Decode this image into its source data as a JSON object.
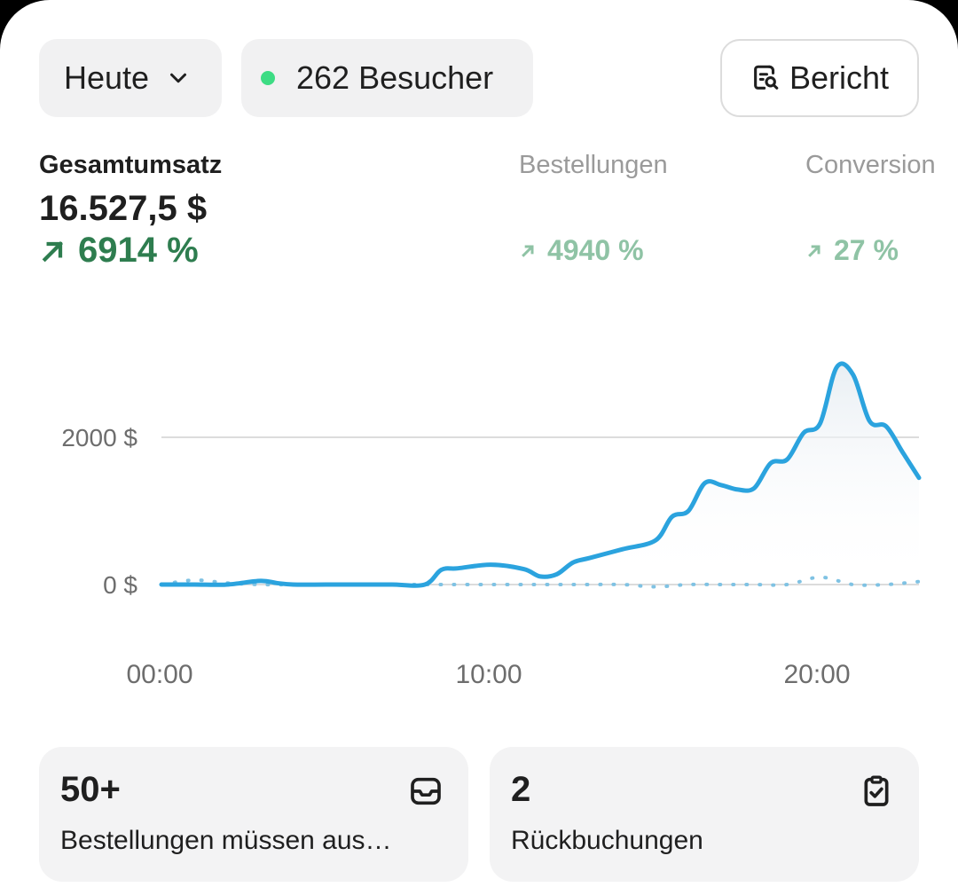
{
  "header": {
    "period_label": "Heute",
    "visitors_label": "262 Besucher",
    "report_label": "Bericht"
  },
  "metrics": {
    "revenue": {
      "label": "Gesamtumsatz",
      "value": "16.527,5 $",
      "change": "6914 %"
    },
    "orders": {
      "label": "Bestellungen",
      "change": "4940 %"
    },
    "conversion": {
      "label": "Conversion",
      "change": "27 %"
    }
  },
  "chart_data": {
    "type": "line",
    "yticks": [
      "2000 $",
      "0 $"
    ],
    "xticks": [
      "00:00",
      "10:00",
      "20:00"
    ],
    "ylim": [
      0,
      3000
    ],
    "x_range": [
      0,
      23
    ],
    "grid": true,
    "series": [
      {
        "x": [
          0,
          1,
          2,
          3,
          3.5,
          4,
          5,
          6,
          7,
          8,
          8.5,
          9,
          10,
          11,
          11.5,
          12,
          12.5,
          13,
          14,
          15,
          15.5,
          16,
          16.5,
          17,
          17.5,
          18,
          18.5,
          19,
          19.5,
          20,
          20.5,
          21,
          21.5,
          22,
          22.5,
          23
        ],
        "values": [
          0,
          0,
          0,
          50,
          20,
          0,
          0,
          0,
          0,
          0,
          200,
          220,
          270,
          210,
          110,
          140,
          300,
          360,
          480,
          600,
          920,
          1000,
          1380,
          1350,
          1290,
          1310,
          1650,
          1700,
          2060,
          2190,
          2950,
          2850,
          2220,
          2150,
          1800,
          1450
        ]
      },
      {
        "x": [
          0,
          1,
          2,
          3,
          4,
          5,
          6,
          7,
          8,
          9,
          10,
          11,
          12,
          13,
          14,
          15,
          16,
          17,
          18,
          19,
          20,
          21,
          22,
          23
        ],
        "values": [
          0,
          60,
          20,
          0,
          0,
          0,
          0,
          0,
          0,
          0,
          0,
          0,
          0,
          0,
          0,
          -30,
          0,
          0,
          0,
          0,
          100,
          0,
          0,
          40
        ]
      }
    ]
  },
  "tiles": [
    {
      "number": "50+",
      "text": "Bestellungen müssen aus…",
      "icon": "inbox-icon"
    },
    {
      "number": "2",
      "text": "Rückbuchungen",
      "icon": "clipboard-check-icon"
    }
  ]
}
